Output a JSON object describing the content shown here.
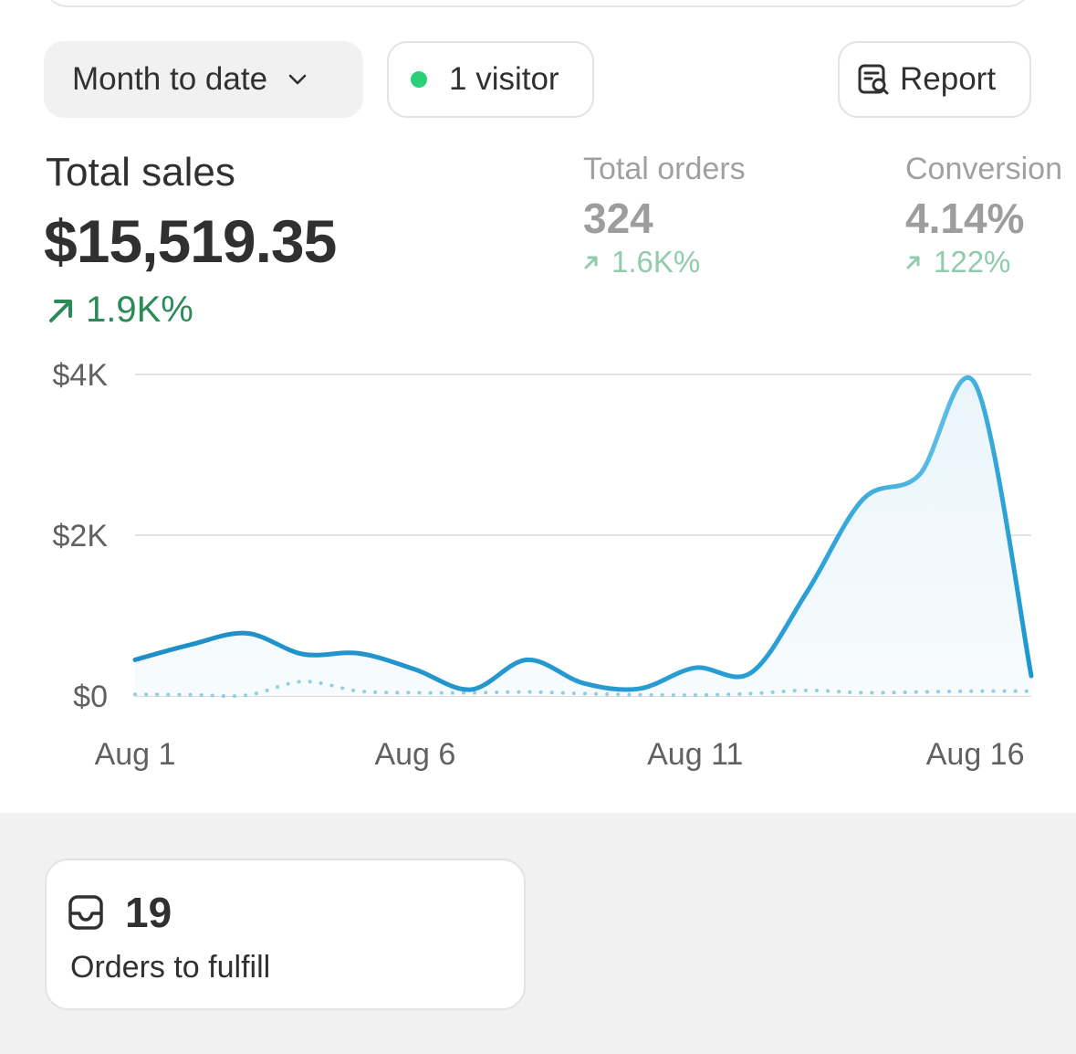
{
  "toolbar": {
    "date_range": "Month to date",
    "visitors": "1 visitor",
    "report_label": "Report"
  },
  "metrics": {
    "total_sales": {
      "label": "Total sales",
      "value": "$15,519.35",
      "change": "1.9K%"
    },
    "total_orders": {
      "label": "Total orders",
      "value": "324",
      "change": "1.6K%"
    },
    "conversion": {
      "label": "Conversion",
      "value": "4.14%",
      "change": "122%"
    }
  },
  "chart_data": {
    "type": "line",
    "x": [
      "Aug 1",
      "Aug 2",
      "Aug 3",
      "Aug 4",
      "Aug 5",
      "Aug 6",
      "Aug 7",
      "Aug 8",
      "Aug 9",
      "Aug 10",
      "Aug 11",
      "Aug 12",
      "Aug 13",
      "Aug 14",
      "Aug 15",
      "Aug 16",
      "Aug 17"
    ],
    "x_tick_labels": [
      "Aug 1",
      "Aug 6",
      "Aug 11",
      "Aug 16"
    ],
    "y_tick_labels": [
      "$0",
      "$2K",
      "$4K"
    ],
    "ylim": [
      0,
      4000
    ],
    "grid": true,
    "series": [
      {
        "style": "solid",
        "color": "#1a97cf",
        "values": [
          450,
          640,
          780,
          520,
          530,
          330,
          80,
          450,
          160,
          90,
          350,
          290,
          1300,
          2450,
          2750,
          3880,
          250
        ]
      },
      {
        "style": "dotted",
        "color": "#8fcfe0",
        "values": [
          20,
          15,
          10,
          180,
          60,
          40,
          40,
          50,
          30,
          15,
          10,
          30,
          70,
          40,
          50,
          60,
          60
        ]
      }
    ]
  },
  "fulfill": {
    "count": "19",
    "label": "Orders to fulfill"
  },
  "colors": {
    "accent_green": "#2a8a58",
    "line_blue": "#1a97cf",
    "live_dot": "#29d078"
  },
  "icons": [
    "chevron-down-icon",
    "report-search-icon",
    "arrow-up-right-icon",
    "inbox-icon"
  ]
}
